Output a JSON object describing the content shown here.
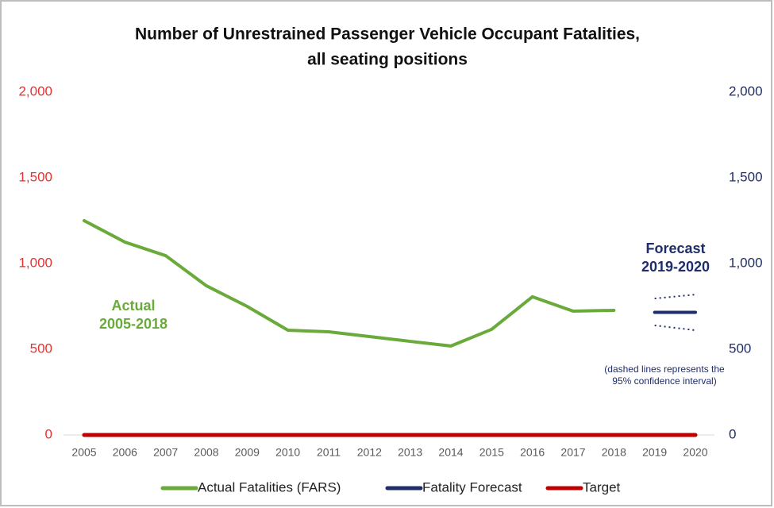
{
  "chart_data": {
    "type": "line",
    "title": [
      "Number of Unrestrained Passenger Vehicle Occupant Fatalities,",
      "all seating positions"
    ],
    "categories": [
      "2005",
      "2006",
      "2007",
      "2008",
      "2009",
      "2010",
      "2011",
      "2012",
      "2013",
      "2014",
      "2015",
      "2016",
      "2017",
      "2018",
      "2019",
      "2020"
    ],
    "series": [
      {
        "name": "Actual Fatalities (FARS)",
        "color": "#6aaa3a",
        "axis": "y",
        "values": [
          1250,
          1125,
          1046,
          870,
          750,
          611,
          602,
          574,
          546,
          519,
          616,
          806,
          722,
          727,
          null,
          null
        ]
      },
      {
        "name": "Fatality Forecast",
        "color": "#1f2d6b",
        "axis": "y2",
        "values": [
          null,
          null,
          null,
          null,
          null,
          null,
          null,
          null,
          null,
          null,
          null,
          null,
          null,
          null,
          715,
          715
        ]
      },
      {
        "name": "Target",
        "color": "#c00000",
        "axis": "y",
        "values": [
          0,
          0,
          0,
          0,
          0,
          0,
          0,
          0,
          0,
          0,
          0,
          0,
          0,
          0,
          0,
          0
        ]
      }
    ],
    "confidence_interval": {
      "color": "#1f2d6b",
      "upper": [
        null,
        null,
        null,
        null,
        null,
        null,
        null,
        null,
        null,
        null,
        null,
        null,
        null,
        null,
        796,
        819
      ],
      "lower": [
        null,
        null,
        null,
        null,
        null,
        null,
        null,
        null,
        null,
        null,
        null,
        null,
        null,
        null,
        639,
        611
      ]
    },
    "ylim": [
      0,
      2000
    ],
    "yticks": [
      0,
      500,
      {
        "value": 1000,
        "label": "1,000"
      },
      {
        "value": 1500,
        "label": "1,500"
      },
      {
        "value": 2000,
        "label": "2,000"
      }
    ],
    "ytick_color": "#e8312f",
    "y2lim": [
      0,
      2000
    ],
    "y2ticks": [
      0,
      500,
      {
        "value": 1000,
        "label": "1,000"
      },
      {
        "value": 1500,
        "label": "1,500"
      },
      {
        "value": 2000,
        "label": "2,000"
      }
    ],
    "y2tick_color": "#1f2d6b",
    "grid": false,
    "legend": "bottom",
    "annotations": [
      {
        "lines": [
          "Actual",
          "2005-2018"
        ],
        "color": "#6aaa3a"
      },
      {
        "lines": [
          "Forecast",
          "2019-2020"
        ],
        "color": "#1f2d6b"
      },
      {
        "lines": [
          "(dashed lines represents the",
          "95% confidence interval)"
        ],
        "color": "#1f2d6b"
      }
    ]
  }
}
